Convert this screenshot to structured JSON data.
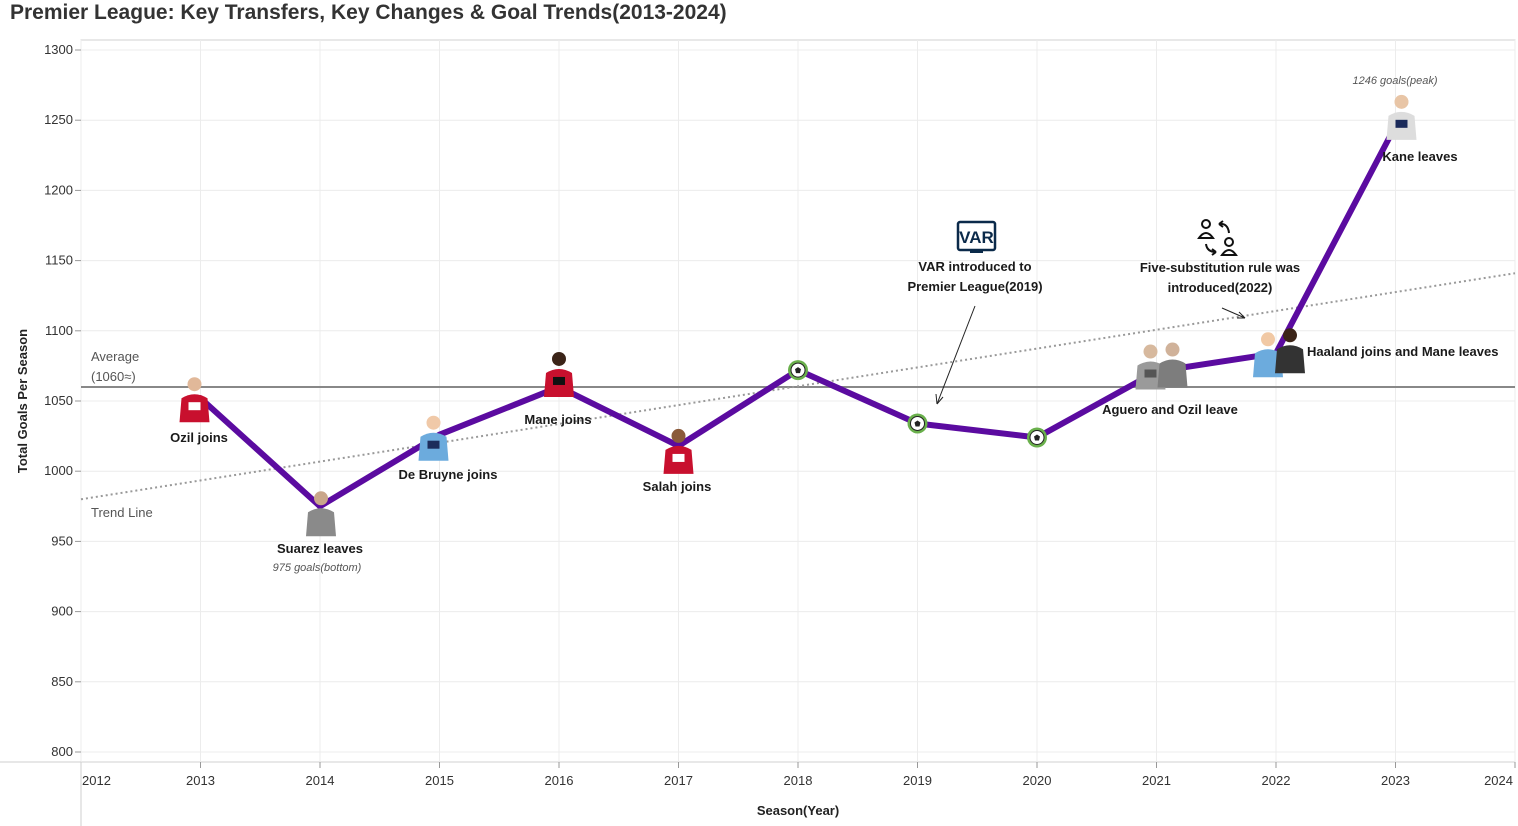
{
  "title": "Premier League: Key Transfers, Key Changes & Goal Trends(2013-2024)",
  "chart_data": {
    "type": "line",
    "title": "Premier League: Key Transfers, Key Changes & Goal Trends(2013-2024)",
    "xlabel": "Season(Year)",
    "ylabel": "Total Goals Per Season",
    "xlim": [
      2012,
      2024
    ],
    "ylim": [
      800,
      1300
    ],
    "x_ticks": [
      "2012",
      "2013",
      "2014",
      "2015",
      "2016",
      "2017",
      "2018",
      "2019",
      "2020",
      "2021",
      "2022",
      "2023",
      "2024"
    ],
    "y_ticks": [
      "1300",
      "1250",
      "1200",
      "1150",
      "1100",
      "1050",
      "1000",
      "950",
      "900",
      "850",
      "800"
    ],
    "grid": true,
    "line_color": "#5b0ba0",
    "series": [
      {
        "x": [
          2013,
          2014,
          2015,
          2016,
          2017,
          2018,
          2019,
          2020,
          2021,
          2022,
          2023
        ],
        "values": [
          1052,
          975,
          1026,
          1060,
          1018,
          1072,
          1034,
          1024,
          1071,
          1084,
          1246
        ]
      }
    ],
    "reference_lines": {
      "average": {
        "value": 1060,
        "label_lines": [
          "Average",
          "(1060≈)"
        ],
        "color": "#888888"
      },
      "trend": {
        "start": [
          2012,
          980
        ],
        "end": [
          2024,
          1141
        ],
        "label": "Trend Line",
        "color": "#999999"
      }
    },
    "annotations": [
      {
        "id": "ozil",
        "lines": [
          "Ozil joins"
        ],
        "x": 2013
      },
      {
        "id": "suarez",
        "lines": [
          "Suarez leaves"
        ],
        "note": "975 goals(bottom)",
        "x": 2014
      },
      {
        "id": "debruyne",
        "lines": [
          "De Bruyne joins"
        ],
        "x": 2015
      },
      {
        "id": "mane",
        "lines": [
          "Mane joins"
        ],
        "x": 2016
      },
      {
        "id": "salah",
        "lines": [
          "Salah joins"
        ],
        "x": 2017
      },
      {
        "id": "var",
        "lines": [
          "VAR introduced to",
          "Premier League(2019)"
        ],
        "icon": "VAR",
        "x": 2019
      },
      {
        "id": "aguero",
        "lines": [
          "Aguero and Ozil leave"
        ],
        "x": 2021
      },
      {
        "id": "fivesub",
        "lines": [
          "Five-substitution rule was",
          "introduced(2022)"
        ],
        "icon": "substitution-icon",
        "x": 2022
      },
      {
        "id": "haaland",
        "lines": [
          "Haaland joins and Mane leaves"
        ],
        "x": 2022
      },
      {
        "id": "kane",
        "lines": [
          "Kane leaves"
        ],
        "note": "1246 goals(peak)",
        "x": 2023
      }
    ],
    "football_marker_years": [
      2018,
      2019,
      2020
    ],
    "football_marker_color": "#6ab04c"
  }
}
